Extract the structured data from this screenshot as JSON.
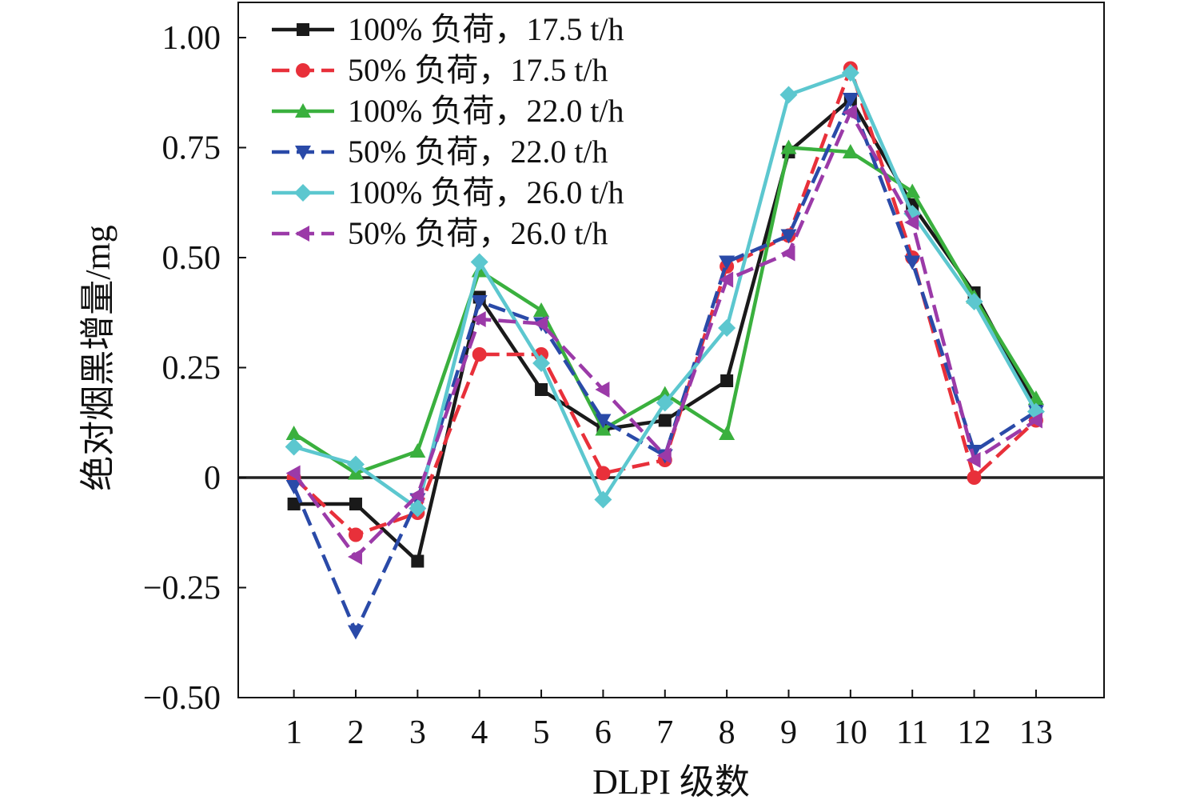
{
  "chart_data": {
    "type": "line",
    "title": "",
    "xlabel": "DLPI 级数",
    "ylabel": "绝对烟黑增量/mg",
    "x": [
      1,
      2,
      3,
      4,
      5,
      6,
      7,
      8,
      9,
      10,
      11,
      12,
      13
    ],
    "x_tick_labels": [
      "1",
      "2",
      "3",
      "4",
      "5",
      "6",
      "7",
      "8",
      "9",
      "10",
      "11",
      "12",
      "13"
    ],
    "xlim": [
      0.1,
      14.1
    ],
    "ylim": [
      -0.5,
      1.08
    ],
    "y_ticks": [
      -0.5,
      -0.25,
      0,
      0.25,
      0.5,
      0.75,
      1.0
    ],
    "y_tick_labels": [
      "−0.50",
      "−0.25",
      "0",
      "0.25",
      "0.50",
      "0.75",
      "1.00"
    ],
    "zero_line": true,
    "grid": false,
    "legend_position": "top-left",
    "series": [
      {
        "name": "100% 负荷，17.5 t/h",
        "color": "#1a1a1a",
        "marker": "square",
        "dashed": false,
        "values": [
          -0.06,
          -0.06,
          -0.19,
          0.41,
          0.2,
          0.11,
          0.13,
          0.22,
          0.74,
          0.86,
          0.62,
          0.42,
          0.16
        ]
      },
      {
        "name": "50% 负荷，17.5 t/h",
        "color": "#e8303a",
        "marker": "circle",
        "dashed": true,
        "values": [
          0.0,
          -0.13,
          -0.08,
          0.28,
          0.28,
          0.01,
          0.04,
          0.48,
          0.55,
          0.93,
          0.5,
          0.0,
          0.13
        ]
      },
      {
        "name": "100% 负荷，22.0 t/h",
        "color": "#3ab03e",
        "marker": "triangle-up",
        "dashed": false,
        "values": [
          0.1,
          0.01,
          0.06,
          0.47,
          0.38,
          0.11,
          0.19,
          0.1,
          0.75,
          0.74,
          0.65,
          0.41,
          0.18
        ]
      },
      {
        "name": "50% 负荷，22.0 t/h",
        "color": "#2a4aa8",
        "marker": "triangle-down",
        "dashed": true,
        "values": [
          -0.02,
          -0.35,
          -0.05,
          0.4,
          0.35,
          0.13,
          0.05,
          0.49,
          0.55,
          0.86,
          0.49,
          0.06,
          0.15
        ]
      },
      {
        "name": "100% 负荷，26.0 t/h",
        "color": "#5cc7cf",
        "marker": "diamond",
        "dashed": false,
        "values": [
          0.07,
          0.03,
          -0.07,
          0.49,
          0.26,
          -0.05,
          0.17,
          0.34,
          0.87,
          0.92,
          0.6,
          0.4,
          0.15
        ]
      },
      {
        "name": "50% 负荷，26.0 t/h",
        "color": "#9b3aa8",
        "marker": "triangle-left",
        "dashed": true,
        "values": [
          0.01,
          -0.18,
          -0.04,
          0.36,
          0.35,
          0.2,
          0.05,
          0.45,
          0.51,
          0.83,
          0.58,
          0.04,
          0.13
        ]
      }
    ]
  }
}
